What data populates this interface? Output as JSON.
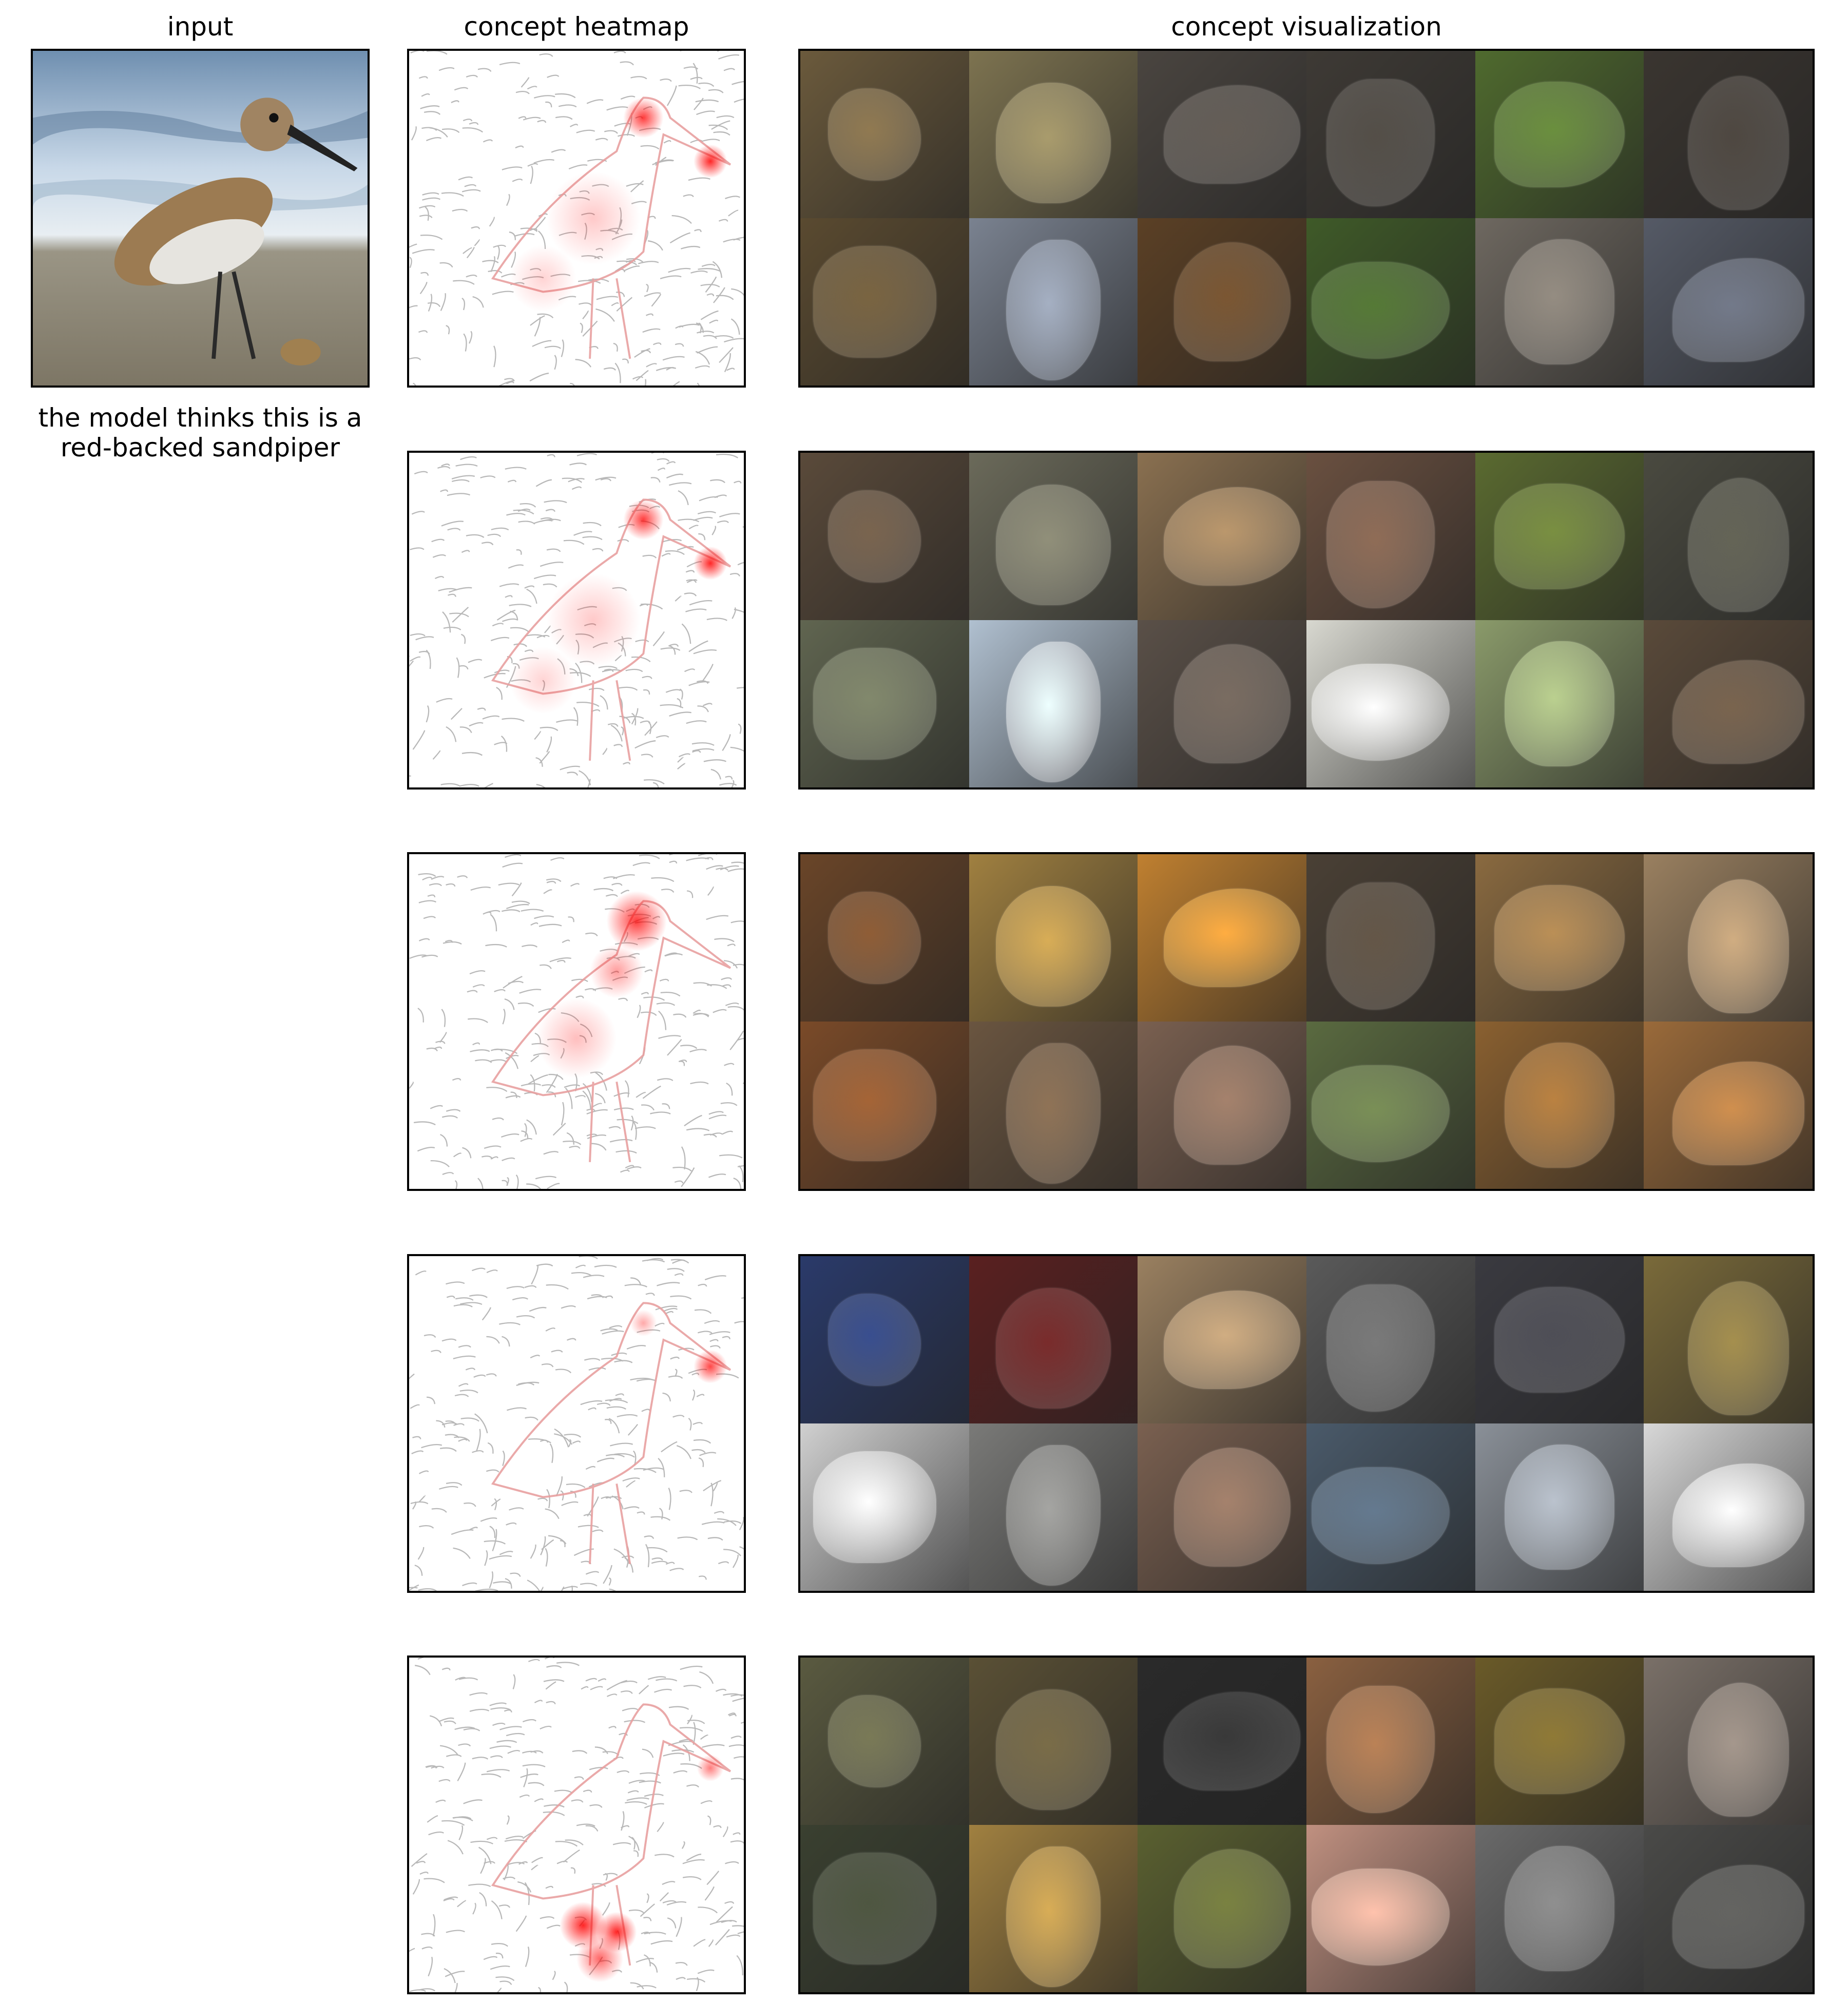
{
  "headers": {
    "input": "input",
    "heatmap": "concept heatmap",
    "visualization": "concept visualization"
  },
  "caption": "the model thinks this is a red-backed sandpiper",
  "rows": [
    {
      "heat_focus": "beak-head",
      "tiles": [
        "#6b5a3c",
        "#7d7350",
        "#4a4540",
        "#3e3a35",
        "#4f6a2e",
        "#3a3530",
        "#5a4a30",
        "#7a8290",
        "#5b4025",
        "#3f5a28",
        "#6e6860",
        "#555a66"
      ]
    },
    {
      "heat_focus": "beak-head",
      "tiles": [
        "#5a4a3a",
        "#6b6a5a",
        "#8a7050",
        "#6a5040",
        "#5a6a30",
        "#4a4a40",
        "#606550",
        "#b0c0d0",
        "#5a5048",
        "#d8d8d0",
        "#8a9a6a",
        "#5a4a3a"
      ]
    },
    {
      "heat_focus": "head-neck",
      "tiles": [
        "#6a4528",
        "#a08040",
        "#c08030",
        "#4a4035",
        "#8a6a40",
        "#9a8060",
        "#7a4a28",
        "#6a5540",
        "#7a6050",
        "#5a6a40",
        "#8a6030",
        "#9a6a3a"
      ]
    },
    {
      "heat_focus": "beak",
      "tiles": [
        "#2a3a6a",
        "#5a2020",
        "#9a8060",
        "#5a5a5a",
        "#3a3a40",
        "#7a6a3a",
        "#d0d0d0",
        "#7a7a78",
        "#7a6050",
        "#4a5a6a",
        "#8a9098",
        "#d8d8d8"
      ]
    },
    {
      "heat_focus": "legs",
      "tiles": [
        "#5a5a40",
        "#5a5035",
        "#2a2a2a",
        "#8a6040",
        "#6a5a28",
        "#7a7068",
        "#3a4030",
        "#a08040",
        "#5a6030",
        "#c09080",
        "#6a6a6a",
        "#4a4a48"
      ]
    }
  ]
}
